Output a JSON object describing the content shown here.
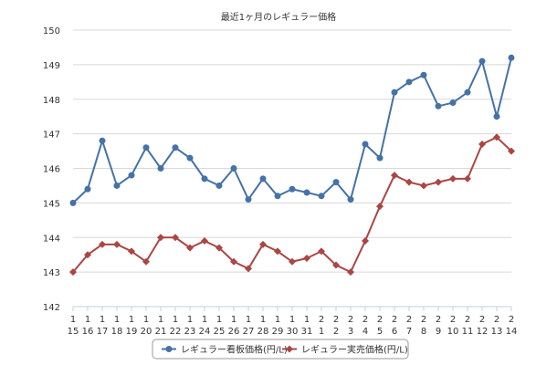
{
  "chart_data": {
    "type": "line",
    "title": "最近1ヶ月のレギュラー価格",
    "xlabel": "",
    "ylabel": "",
    "ylim": [
      142,
      150
    ],
    "yticks": [
      142,
      143,
      144,
      145,
      146,
      147,
      148,
      149,
      150
    ],
    "grid": true,
    "legend_position": "bottom",
    "categories": [
      [
        "1",
        "15"
      ],
      [
        "1",
        "16"
      ],
      [
        "1",
        "17"
      ],
      [
        "1",
        "18"
      ],
      [
        "1",
        "19"
      ],
      [
        "1",
        "20"
      ],
      [
        "1",
        "21"
      ],
      [
        "1",
        "22"
      ],
      [
        "1",
        "23"
      ],
      [
        "1",
        "24"
      ],
      [
        "1",
        "25"
      ],
      [
        "1",
        "26"
      ],
      [
        "1",
        "27"
      ],
      [
        "1",
        "28"
      ],
      [
        "1",
        "29"
      ],
      [
        "1",
        "30"
      ],
      [
        "1",
        "31"
      ],
      [
        "2",
        "1"
      ],
      [
        "2",
        "2"
      ],
      [
        "2",
        "3"
      ],
      [
        "2",
        "4"
      ],
      [
        "2",
        "5"
      ],
      [
        "2",
        "6"
      ],
      [
        "2",
        "7"
      ],
      [
        "2",
        "8"
      ],
      [
        "2",
        "9"
      ],
      [
        "2",
        "10"
      ],
      [
        "2",
        "11"
      ],
      [
        "2",
        "12"
      ],
      [
        "2",
        "13"
      ],
      [
        "2",
        "14"
      ]
    ],
    "series": [
      {
        "name": "レギュラー看板価格(円/L)",
        "color": "#4572A7",
        "marker": "circle",
        "values": [
          145.0,
          145.4,
          146.8,
          145.5,
          145.8,
          146.6,
          146.0,
          146.6,
          146.3,
          145.7,
          145.5,
          146.0,
          145.1,
          145.7,
          145.2,
          145.4,
          145.3,
          145.2,
          145.6,
          145.1,
          146.7,
          146.3,
          148.2,
          148.5,
          148.7,
          147.8,
          147.9,
          148.2,
          149.1,
          147.5,
          149.2
        ]
      },
      {
        "name": "レギュラー実売価格(円/L)",
        "color": "#AA4643",
        "marker": "diamond",
        "values": [
          143.0,
          143.5,
          143.8,
          143.8,
          143.6,
          143.3,
          144.0,
          144.0,
          143.7,
          143.9,
          143.7,
          143.3,
          143.1,
          143.8,
          143.6,
          143.3,
          143.4,
          143.6,
          143.2,
          143.0,
          143.9,
          144.9,
          145.8,
          145.6,
          145.5,
          145.6,
          145.7,
          145.7,
          146.7,
          146.9,
          146.5
        ]
      }
    ]
  }
}
